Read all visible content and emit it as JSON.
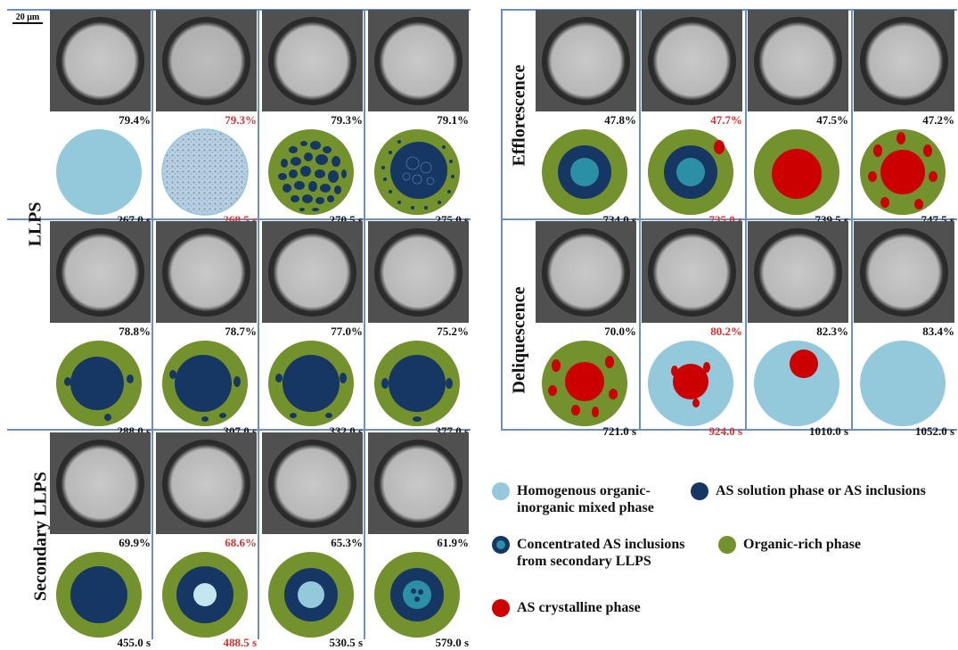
{
  "scale_bar": "20 μm",
  "colors": {
    "homogeneous": "#93c9db",
    "as_solution": "#163763",
    "concentrated": "#2b8fa5",
    "organic": "#73912c",
    "crystal": "#cc0000",
    "divider": "#6b8fc5",
    "highlight": "#e03030"
  },
  "sections": {
    "llps": "LLPS",
    "secondary": "Secondary LLPS",
    "efflorescence": "Efflorescence",
    "deliquescence": "Deliquescence"
  },
  "panels": {
    "llps_row1": [
      {
        "rh": "79.4%",
        "time": "267.0 s",
        "highlight": false
      },
      {
        "rh": "79.3%",
        "time": "268.5 s",
        "highlight": true
      },
      {
        "rh": "79.3%",
        "time": "270.5 s",
        "highlight": false
      },
      {
        "rh": "79.1%",
        "time": "275.0 s",
        "highlight": false
      }
    ],
    "llps_row2": [
      {
        "rh": "78.8%",
        "time": "288.0 s",
        "highlight": false
      },
      {
        "rh": "78.7%",
        "time": "307.0 s",
        "highlight": false
      },
      {
        "rh": "77.0%",
        "time": "332.0 s",
        "highlight": false
      },
      {
        "rh": "75.2%",
        "time": "377.0 s",
        "highlight": false
      }
    ],
    "secondary": [
      {
        "rh": "69.9%",
        "time": "455.0 s",
        "highlight": false
      },
      {
        "rh": "68.6%",
        "time": "488.5 s",
        "highlight": true
      },
      {
        "rh": "65.3%",
        "time": "530.5 s",
        "highlight": false
      },
      {
        "rh": "61.9%",
        "time": "579.0 s",
        "highlight": false
      }
    ],
    "efflorescence": [
      {
        "rh": "47.8%",
        "time": "734.0 s",
        "highlight": false
      },
      {
        "rh": "47.7%",
        "time": "735.0 s",
        "highlight": true
      },
      {
        "rh": "47.5%",
        "time": "739.5 s",
        "highlight": false
      },
      {
        "rh": "47.2%",
        "time": "747.5 s",
        "highlight": false
      }
    ],
    "deliquescence": [
      {
        "rh": "70.0%",
        "time": "721.0 s",
        "highlight": false
      },
      {
        "rh": "80.2%",
        "time": "924.0 s",
        "highlight": true
      },
      {
        "rh": "82.3%",
        "time": "1010.0 s",
        "highlight": false
      },
      {
        "rh": "83.4%",
        "time": "1052.0 s",
        "highlight": false
      }
    ]
  },
  "legend": {
    "homogeneous": "Homogenous organic-inorganic mixed phase",
    "homogeneous_line1": "Homogenous organic-",
    "homogeneous_line2": "inorganic mixed phase",
    "as_solution": "AS solution phase or AS inclusions",
    "concentrated_line1": "Concentrated AS inclusions",
    "concentrated_line2": "from secondary LLPS",
    "organic": "Organic-rich phase",
    "crystal": "AS crystalline phase"
  }
}
